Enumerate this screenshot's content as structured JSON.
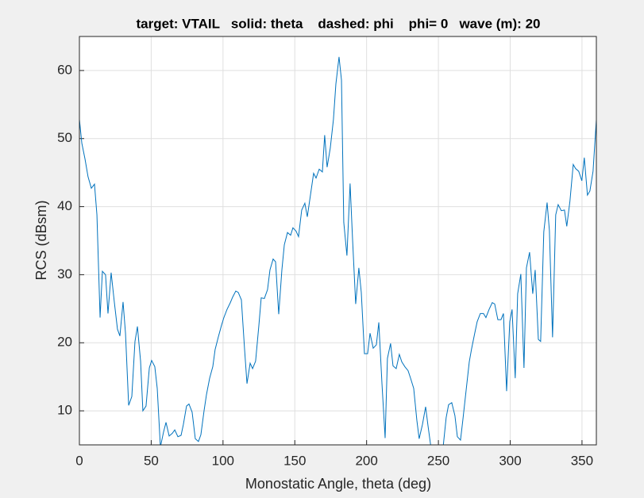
{
  "chart_data": {
    "type": "line",
    "title": "target: VTAIL   solid: theta    dashed: phi    phi= 0   wave (m): 20",
    "xlabel": "Monostatic Angle, theta (deg)",
    "ylabel": "RCS (dBsm)",
    "xlim": [
      0,
      360
    ],
    "ylim": [
      5,
      65
    ],
    "xticks": [
      0,
      50,
      100,
      150,
      200,
      250,
      300,
      350
    ],
    "yticks": [
      10,
      20,
      30,
      40,
      50,
      60
    ],
    "grid": true,
    "series": [
      {
        "color": "#0072bd",
        "dash": false,
        "x": [
          0,
          1.7,
          3.9,
          6,
          8.3,
          10.5,
          12.2,
          14.4,
          16,
          18.2,
          19.9,
          22.1,
          24.3,
          26.5,
          28.2,
          30.4,
          32.1,
          34.3,
          36.5,
          38.7,
          40.4,
          42.6,
          44.2,
          46.4,
          48.7,
          50.3,
          52.5,
          54.2,
          56.4,
          58.6,
          60.3,
          62.5,
          64.7,
          66.4,
          68.6,
          70.8,
          72.4,
          74.6,
          76.3,
          78.5,
          80.7,
          82.9,
          84.6,
          86.8,
          88.5,
          90.7,
          92.9,
          94.5,
          96.8,
          99,
          100.6,
          102.8,
          105.1,
          106.7,
          108.9,
          110.6,
          112.8,
          115,
          116.7,
          118.9,
          120.6,
          122.7,
          125,
          126.6,
          128.8,
          131,
          132.7,
          134.9,
          136.6,
          138.8,
          141,
          142.7,
          144.9,
          147.1,
          148.7,
          150.9,
          152.6,
          154.8,
          157,
          158.7,
          160.9,
          163.1,
          164.8,
          167,
          169.2,
          170.8,
          172.5,
          174.7,
          176.9,
          178.6,
          180.8,
          182.5,
          184.1,
          186.3,
          188.5,
          190.2,
          192.4,
          194.6,
          196.3,
          198.5,
          200.7,
          202.4,
          204.6,
          206.8,
          208.5,
          210.7,
          212.9,
          214.5,
          216.7,
          218.4,
          220.6,
          222.8,
          224.5,
          226.6,
          228.9,
          230.6,
          232.8,
          235,
          236.6,
          238.9,
          241.1,
          242.7,
          244.9,
          249,
          253.2,
          255.4,
          257.1,
          259.3,
          261.5,
          263.2,
          265.4,
          267,
          269.3,
          271.5,
          273.1,
          275.3,
          277,
          279.2,
          281.4,
          283.1,
          285.3,
          287.5,
          289.2,
          291.4,
          293.6,
          295.3,
          297.5,
          299.7,
          301.3,
          303.5,
          305.2,
          307.4,
          309.6,
          311.3,
          313.5,
          315.7,
          317.4,
          319.6,
          321.2,
          323.4,
          325.7,
          327.3,
          329.5,
          331.7,
          333.4,
          335.6,
          337.8,
          339.4,
          341.6,
          343.9,
          345.5,
          347.7,
          349.9,
          351.6,
          353.8,
          355.5,
          357.7,
          360
        ],
        "values": [
          52.8,
          49.3,
          47,
          44.4,
          42.7,
          43.3,
          38.8,
          23.7,
          30.5,
          30,
          24.3,
          30.3,
          26,
          22,
          21,
          26,
          21.4,
          10.8,
          12.1,
          20.2,
          22.4,
          17.3,
          10,
          10.7,
          16.3,
          17.4,
          16.5,
          13.3,
          4.7,
          6.9,
          8.3,
          6.3,
          6.7,
          7.2,
          6.2,
          6.4,
          8,
          10.7,
          11,
          9.8,
          5.9,
          5.5,
          6.5,
          10,
          12.4,
          14.8,
          16.5,
          19,
          20.9,
          22.6,
          23.7,
          24.9,
          25.9,
          26.7,
          27.6,
          27.4,
          26.3,
          19.1,
          14,
          17,
          16.2,
          17.3,
          22.6,
          26.6,
          26.5,
          27.8,
          30.7,
          32.3,
          31.9,
          24.2,
          30.7,
          34.4,
          36.2,
          35.8,
          36.9,
          36.4,
          35.6,
          39.5,
          40.5,
          38.5,
          41.7,
          44.9,
          44.2,
          45.5,
          45.1,
          50.5,
          45.8,
          48.6,
          52.8,
          58,
          62,
          58.6,
          37.7,
          32.8,
          43.4,
          35.3,
          25.7,
          31,
          27.4,
          18.4,
          18.4,
          21.4,
          19.2,
          19.7,
          23,
          14,
          6,
          17.7,
          19.9,
          16.6,
          16.2,
          18.3,
          17.2,
          16.5,
          15.9,
          14.8,
          13.3,
          8.6,
          5.9,
          8,
          10.6,
          7.9,
          4.5,
          2,
          4.5,
          9,
          10.9,
          11.2,
          9.3,
          6.2,
          5.7,
          8.6,
          13,
          17.2,
          19.1,
          21.4,
          23.1,
          24.3,
          24.3,
          23.7,
          24.9,
          25.9,
          25.7,
          23.4,
          23.4,
          24.3,
          12.9,
          23.1,
          24.9,
          14.8,
          27.2,
          30.1,
          16.3,
          31,
          33.3,
          27.2,
          30.7,
          20.5,
          20.2,
          36.3,
          40.6,
          36.5,
          20.8,
          38.8,
          40.3,
          39.4,
          39.5,
          37.1,
          40.8,
          46.2,
          45.6,
          45.2,
          43.8,
          47.2,
          41.7,
          42.3,
          45.2,
          52.8
        ]
      },
      {
        "color": "#d95319",
        "dash": true,
        "x": [
          0,
          360
        ],
        "values": [
          5,
          5
        ]
      }
    ]
  }
}
